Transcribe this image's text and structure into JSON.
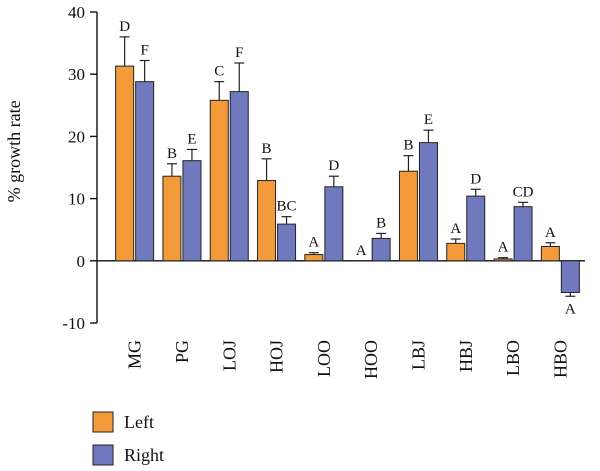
{
  "chart_data": {
    "type": "bar",
    "title": "",
    "xlabel": "",
    "ylabel": "% growth rate",
    "ylim": [
      -10,
      40
    ],
    "yticks": [
      -10,
      0,
      10,
      20,
      30,
      40
    ],
    "categories": [
      "MG",
      "PG",
      "LOJ",
      "HOJ",
      "LOO",
      "HOO",
      "LBJ",
      "HBJ",
      "LBO",
      "HBO"
    ],
    "series": [
      {
        "name": "Left",
        "color": "#F39A3B",
        "values": [
          31.3,
          13.6,
          25.8,
          12.9,
          1.0,
          0.0,
          14.4,
          2.8,
          0.3,
          2.3
        ],
        "errors": [
          4.7,
          2.0,
          3.0,
          3.5,
          0.3,
          0.0,
          2.5,
          0.7,
          0.2,
          0.6
        ],
        "letters": [
          "D",
          "B",
          "C",
          "B",
          "A",
          "A",
          "B",
          "A",
          "A",
          "A"
        ]
      },
      {
        "name": "Right",
        "color": "#7179BE",
        "values": [
          28.8,
          16.1,
          27.2,
          5.9,
          11.9,
          3.6,
          19.0,
          10.4,
          8.7,
          -5.1
        ],
        "errors": [
          3.4,
          1.8,
          4.6,
          1.2,
          1.7,
          0.8,
          2.0,
          1.1,
          0.7,
          0.6
        ],
        "letters": [
          "F",
          "E",
          "F",
          "BC",
          "D",
          "B",
          "E",
          "D",
          "CD",
          "A"
        ]
      }
    ],
    "grid": false,
    "legend_position": "bottom-left"
  }
}
